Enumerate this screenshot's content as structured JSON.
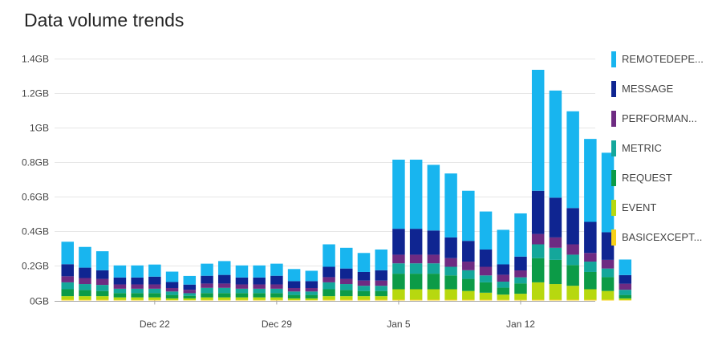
{
  "header": {
    "title": "Data volume trends"
  },
  "legend": [
    {
      "label": "REMOTEDEPE...",
      "color": "#18b5ef"
    },
    {
      "label": "MESSAGE",
      "color": "#0f2591"
    },
    {
      "label": "PERFORMAN...",
      "color": "#6e2b82"
    },
    {
      "label": "METRIC",
      "color": "#14a79b"
    },
    {
      "label": "REQUEST",
      "color": "#0c9b47"
    },
    {
      "label": "EVENT",
      "color": "#b7d80f"
    },
    {
      "label": "BASICEXCEPT...",
      "color": "#f7d117"
    }
  ],
  "chart_data": {
    "type": "bar",
    "stacked": true,
    "title": "Data volume trends",
    "xlabel": "",
    "ylabel": "",
    "ylim": [
      0,
      1.4
    ],
    "y_ticks": [
      "0GB",
      "0.2GB",
      "0.4GB",
      "0.6GB",
      "0.8GB",
      "1GB",
      "1.2GB",
      "1.4GB"
    ],
    "x_ticks": [
      {
        "label": "Dec 22",
        "index": 5
      },
      {
        "label": "Dec 29",
        "index": 12
      },
      {
        "label": "Jan 5",
        "index": 19
      },
      {
        "label": "Jan 12",
        "index": 26
      }
    ],
    "grid": "horizontal",
    "legend_position": "right",
    "series": [
      {
        "name": "BASICEXCEPT...",
        "color": "#f7d117",
        "values": [
          0.005,
          0.005,
          0.005,
          0.003,
          0.003,
          0.003,
          0.002,
          0.002,
          0.003,
          0.003,
          0.003,
          0.003,
          0.003,
          0.002,
          0.002,
          0.005,
          0.005,
          0.005,
          0.005,
          0.005,
          0.005,
          0.005,
          0.005,
          0.005,
          0.005,
          0.004,
          0.004,
          0.005,
          0.005,
          0.005,
          0.005,
          0.005,
          0.002
        ]
      },
      {
        "name": "EVENT",
        "color": "#b7d80f",
        "values": [
          0.02,
          0.02,
          0.02,
          0.015,
          0.015,
          0.015,
          0.01,
          0.01,
          0.015,
          0.015,
          0.015,
          0.015,
          0.015,
          0.01,
          0.01,
          0.02,
          0.02,
          0.02,
          0.02,
          0.06,
          0.06,
          0.06,
          0.06,
          0.05,
          0.04,
          0.03,
          0.035,
          0.1,
          0.09,
          0.08,
          0.06,
          0.05,
          0.01
        ]
      },
      {
        "name": "REQUEST",
        "color": "#0c9b47",
        "values": [
          0.04,
          0.035,
          0.03,
          0.025,
          0.025,
          0.025,
          0.02,
          0.015,
          0.025,
          0.025,
          0.025,
          0.025,
          0.025,
          0.02,
          0.02,
          0.04,
          0.035,
          0.03,
          0.03,
          0.09,
          0.09,
          0.09,
          0.08,
          0.07,
          0.06,
          0.04,
          0.06,
          0.14,
          0.14,
          0.12,
          0.1,
          0.08,
          0.02
        ]
      },
      {
        "name": "METRIC",
        "color": "#14a79b",
        "values": [
          0.04,
          0.035,
          0.035,
          0.025,
          0.025,
          0.025,
          0.02,
          0.015,
          0.03,
          0.03,
          0.025,
          0.025,
          0.025,
          0.02,
          0.02,
          0.04,
          0.035,
          0.03,
          0.03,
          0.06,
          0.06,
          0.06,
          0.05,
          0.05,
          0.04,
          0.035,
          0.035,
          0.08,
          0.07,
          0.06,
          0.06,
          0.05,
          0.03
        ]
      },
      {
        "name": "PERFORMAN...",
        "color": "#6e2b82",
        "values": [
          0.035,
          0.035,
          0.035,
          0.025,
          0.025,
          0.025,
          0.02,
          0.02,
          0.025,
          0.025,
          0.025,
          0.025,
          0.025,
          0.02,
          0.02,
          0.03,
          0.03,
          0.03,
          0.03,
          0.05,
          0.05,
          0.05,
          0.05,
          0.05,
          0.05,
          0.04,
          0.04,
          0.06,
          0.06,
          0.06,
          0.05,
          0.05,
          0.035
        ]
      },
      {
        "name": "MESSAGE",
        "color": "#0f2591",
        "values": [
          0.07,
          0.06,
          0.05,
          0.04,
          0.04,
          0.045,
          0.035,
          0.03,
          0.045,
          0.05,
          0.04,
          0.04,
          0.05,
          0.04,
          0.04,
          0.06,
          0.06,
          0.05,
          0.06,
          0.15,
          0.15,
          0.14,
          0.12,
          0.12,
          0.1,
          0.06,
          0.08,
          0.25,
          0.23,
          0.21,
          0.18,
          0.16,
          0.05
        ]
      },
      {
        "name": "REMOTEDEPE...",
        "color": "#18b5ef",
        "values": [
          0.13,
          0.12,
          0.11,
          0.07,
          0.07,
          0.07,
          0.06,
          0.05,
          0.07,
          0.08,
          0.07,
          0.07,
          0.07,
          0.07,
          0.06,
          0.13,
          0.12,
          0.11,
          0.12,
          0.4,
          0.4,
          0.38,
          0.37,
          0.29,
          0.22,
          0.2,
          0.25,
          0.7,
          0.62,
          0.56,
          0.48,
          0.46,
          0.09
        ]
      }
    ]
  }
}
